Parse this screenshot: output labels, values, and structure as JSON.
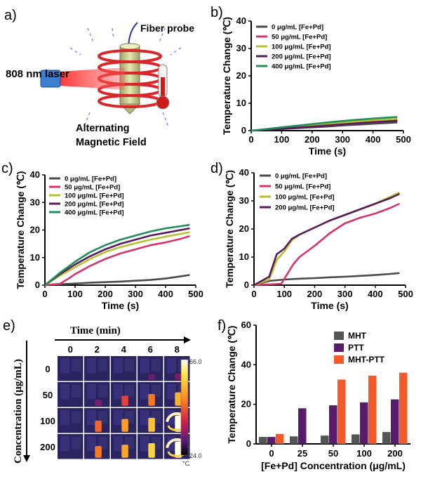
{
  "panel_labels": {
    "a": "a)",
    "b": "b)",
    "c": "c)",
    "d": "d)",
    "e": "e)",
    "f": "f)"
  },
  "schematic": {
    "fiber_probe": "Fiber probe",
    "laser": "808 nm laser",
    "field_line1": "Alternating",
    "field_line2": "Magnetic Field"
  },
  "colors": {
    "0": "#4a4a4a",
    "50": "#d6336c",
    "100": "#b5c22e",
    "200": "#5a1a5e",
    "400": "#1f8f5c",
    "MHT": "#555555",
    "PTT": "#5a1a6e",
    "MHT-PTT": "#f25a2a"
  },
  "thermal": {
    "time_title": "Time (min)",
    "time_labels": [
      "0",
      "2",
      "4",
      "6",
      "8"
    ],
    "conc_title": "Concentration (μg/mL)",
    "conc_labels": [
      "0",
      "50",
      "100",
      "200"
    ],
    "scale_max": "66.0",
    "scale_min": "24.0",
    "scale_unit": "°C",
    "heat": [
      [
        0,
        0,
        0,
        0.05,
        0.1
      ],
      [
        0,
        0.1,
        0.45,
        0.6,
        0.75
      ],
      [
        0,
        0.55,
        0.7,
        0.8,
        1.0
      ],
      [
        0,
        0.6,
        0.72,
        0.85,
        1.0
      ]
    ]
  },
  "chart_data": [
    {
      "id": "b",
      "type": "line",
      "xlabel": "Time (s)",
      "ylabel": "Temperature Change (℃)",
      "xlim": [
        0,
        500
      ],
      "ylim": [
        0,
        40
      ],
      "xticks": [
        "0",
        "100",
        "200",
        "300",
        "400",
        "500"
      ],
      "yticks": [
        "0",
        "10",
        "20",
        "30",
        "40"
      ],
      "series": [
        {
          "name": "0 μg/mL [Fe+Pd]",
          "key": "0",
          "x": [
            0,
            50,
            100,
            150,
            200,
            250,
            300,
            350,
            400,
            450,
            480
          ],
          "y": [
            0,
            0.3,
            0.6,
            0.9,
            1.2,
            1.5,
            1.9,
            2.2,
            2.5,
            2.8,
            3.0
          ]
        },
        {
          "name": "50 μg/mL [Fe+Pd]",
          "key": "50",
          "x": [
            0,
            50,
            100,
            150,
            200,
            250,
            300,
            350,
            400,
            450,
            480
          ],
          "y": [
            0,
            0.4,
            0.8,
            1.2,
            1.6,
            2.0,
            2.4,
            2.8,
            3.2,
            3.5,
            3.7
          ]
        },
        {
          "name": "100 μg/mL [Fe+Pd]",
          "key": "100",
          "x": [
            0,
            50,
            100,
            150,
            200,
            250,
            300,
            350,
            400,
            450,
            480
          ],
          "y": [
            0,
            0.5,
            1.0,
            1.5,
            2.0,
            2.5,
            3.0,
            3.4,
            3.8,
            4.1,
            4.3
          ]
        },
        {
          "name": "200 μg/mL [Fe+Pd]",
          "key": "200",
          "x": [
            0,
            50,
            100,
            150,
            200,
            250,
            300,
            350,
            400,
            450,
            480
          ],
          "y": [
            0,
            0.3,
            0.7,
            1.1,
            1.5,
            1.9,
            2.3,
            2.7,
            3.1,
            3.4,
            3.6
          ]
        },
        {
          "name": "400 μg/mL [Fe+Pd]",
          "key": "400",
          "x": [
            0,
            50,
            100,
            150,
            200,
            250,
            300,
            350,
            400,
            450,
            480
          ],
          "y": [
            0,
            0.6,
            1.2,
            1.8,
            2.4,
            3.0,
            3.5,
            4.0,
            4.4,
            4.8,
            5.0
          ]
        }
      ]
    },
    {
      "id": "c",
      "type": "line",
      "xlabel": "Time (s)",
      "ylabel": "Temperature Change (℃)",
      "xlim": [
        0,
        500
      ],
      "ylim": [
        0,
        40
      ],
      "xticks": [
        "0",
        "100",
        "200",
        "300",
        "400",
        "500"
      ],
      "yticks": [
        "0",
        "10",
        "20",
        "30",
        "40"
      ],
      "series": [
        {
          "name": "0 μg/mL [Fe+Pd]",
          "key": "0",
          "x": [
            0,
            50,
            100,
            150,
            200,
            250,
            300,
            350,
            400,
            450,
            480
          ],
          "y": [
            0,
            0.3,
            0.6,
            0.9,
            1.1,
            1.3,
            1.6,
            1.9,
            2.4,
            3.2,
            3.7
          ]
        },
        {
          "name": "50 μg/mL [Fe+Pd]",
          "key": "50",
          "x": [
            0,
            50,
            80,
            100,
            150,
            200,
            250,
            300,
            350,
            400,
            450,
            480
          ],
          "y": [
            0,
            0.5,
            2.5,
            4,
            7,
            9.5,
            11.5,
            13,
            14.5,
            15.5,
            16.8,
            17.8
          ]
        },
        {
          "name": "100 μg/mL [Fe+Pd]",
          "key": "100",
          "x": [
            0,
            50,
            100,
            150,
            200,
            250,
            300,
            350,
            400,
            450,
            480
          ],
          "y": [
            0,
            3.5,
            6.5,
            9.5,
            12,
            13.8,
            15.2,
            16.5,
            17.6,
            18.6,
            19.2
          ]
        },
        {
          "name": "200 μg/mL [Fe+Pd]",
          "key": "200",
          "x": [
            0,
            50,
            100,
            150,
            200,
            250,
            300,
            350,
            400,
            450,
            480
          ],
          "y": [
            0,
            4,
            7.5,
            10.5,
            13,
            15,
            16.5,
            18,
            19,
            20,
            20.6
          ]
        },
        {
          "name": "400 μg/mL [Fe+Pd]",
          "key": "400",
          "x": [
            0,
            50,
            100,
            150,
            200,
            250,
            300,
            350,
            400,
            450,
            480
          ],
          "y": [
            0,
            4.5,
            8.5,
            12,
            14.5,
            16.5,
            18,
            19.5,
            20.6,
            21.4,
            21.9
          ]
        }
      ]
    },
    {
      "id": "d",
      "type": "line",
      "xlabel": "Time (s)",
      "ylabel": "Temperature Change (℃)",
      "xlim": [
        0,
        500
      ],
      "ylim": [
        0,
        40
      ],
      "xticks": [
        "0",
        "100",
        "200",
        "300",
        "400",
        "500"
      ],
      "yticks": [
        "0",
        "10",
        "20",
        "30",
        "40"
      ],
      "series": [
        {
          "name": "0 μg/mL [Fe+Pd]",
          "key": "0",
          "x": [
            0,
            50,
            100,
            150,
            200,
            250,
            300,
            350,
            400,
            450,
            480
          ],
          "y": [
            0,
            1.5,
            2.0,
            2.3,
            2.5,
            2.8,
            3.0,
            3.3,
            3.6,
            4.0,
            4.3
          ]
        },
        {
          "name": "50 μg/mL [Fe+Pd]",
          "key": "50",
          "x": [
            0,
            90,
            110,
            130,
            150,
            200,
            250,
            300,
            350,
            400,
            450,
            480
          ],
          "y": [
            0,
            0.5,
            4,
            7.5,
            10,
            14,
            18.5,
            22,
            24,
            25.5,
            27.5,
            29
          ]
        },
        {
          "name": "100 μg/mL [Fe+Pd]",
          "key": "100",
          "x": [
            0,
            50,
            75,
            100,
            125,
            150,
            200,
            250,
            300,
            350,
            400,
            450,
            480
          ],
          "y": [
            0,
            2,
            9,
            12,
            16,
            18,
            20.5,
            23,
            25,
            27,
            29,
            31.5,
            33
          ]
        },
        {
          "name": "200 μg/mL [Fe+Pd]",
          "key": "200",
          "x": [
            0,
            50,
            75,
            100,
            125,
            150,
            200,
            250,
            300,
            350,
            400,
            450,
            480
          ],
          "y": [
            0,
            3,
            11,
            13,
            16.5,
            18,
            20.5,
            23,
            25,
            27,
            29,
            31,
            32.5
          ]
        }
      ]
    },
    {
      "id": "f",
      "type": "bar",
      "xlabel": "[Fe+Pd] Concentration (μg/mL)",
      "ylabel": "Temperature Change (℃)",
      "ylim": [
        0,
        60
      ],
      "yticks": [
        "0",
        "20",
        "40",
        "60"
      ],
      "categories": [
        "0",
        "25",
        "50",
        "100",
        "200"
      ],
      "series": [
        {
          "name": "MHT",
          "key": "MHT",
          "values": [
            3.5,
            3.8,
            4.2,
            4.8,
            6.0
          ]
        },
        {
          "name": "PTT",
          "key": "PTT",
          "values": [
            3.5,
            18.0,
            19.5,
            21.0,
            22.5
          ]
        },
        {
          "name": "MHT-PTT",
          "key": "MHT-PTT",
          "values": [
            5.0,
            null,
            32.5,
            34.5,
            36.0
          ]
        }
      ]
    }
  ]
}
